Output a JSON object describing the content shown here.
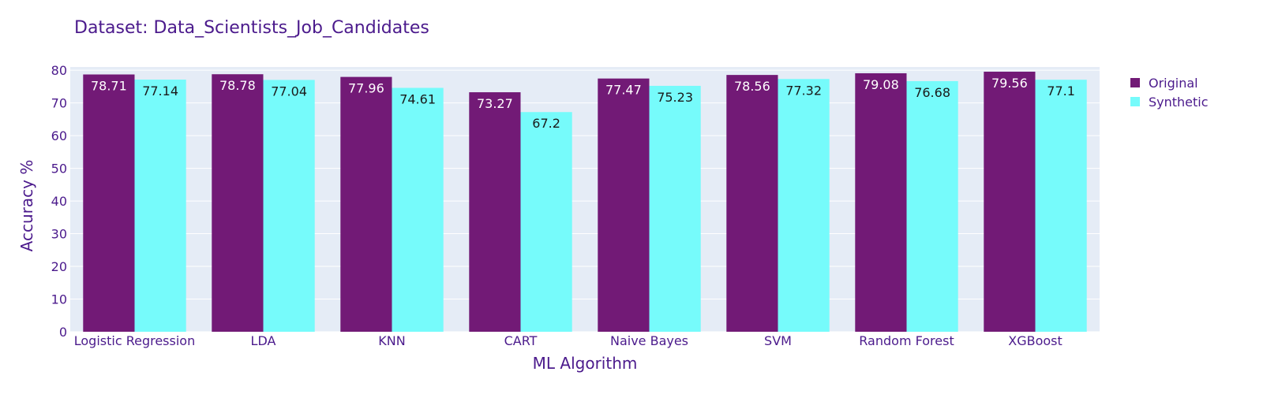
{
  "chart_data": {
    "type": "bar",
    "title": "Dataset: Data_Scientists_Job_Candidates",
    "xlabel": "ML Algorithm",
    "ylabel": "Accuracy %",
    "ylim": [
      0,
      81
    ],
    "yticks": [
      0,
      10,
      20,
      30,
      40,
      50,
      60,
      70,
      80
    ],
    "grid": true,
    "legend_position": "top-right",
    "categories": [
      "Logistic Regression",
      "LDA",
      "KNN",
      "CART",
      "Naive Bayes",
      "SVM",
      "Random Forest",
      "XGBoost"
    ],
    "series": [
      {
        "name": "Original",
        "color": "#721a76",
        "label_color": "#ffffff",
        "values": [
          78.71,
          78.78,
          77.96,
          73.27,
          77.47,
          78.56,
          79.08,
          79.56
        ]
      },
      {
        "name": "Synthetic",
        "color": "#76fbfb",
        "label_color": "#1a1a1a",
        "values": [
          77.14,
          77.04,
          74.61,
          67.2,
          75.23,
          77.32,
          76.68,
          77.1
        ]
      }
    ],
    "plot_background": "#e5ecf6",
    "text_color": "#4b1a8c"
  }
}
